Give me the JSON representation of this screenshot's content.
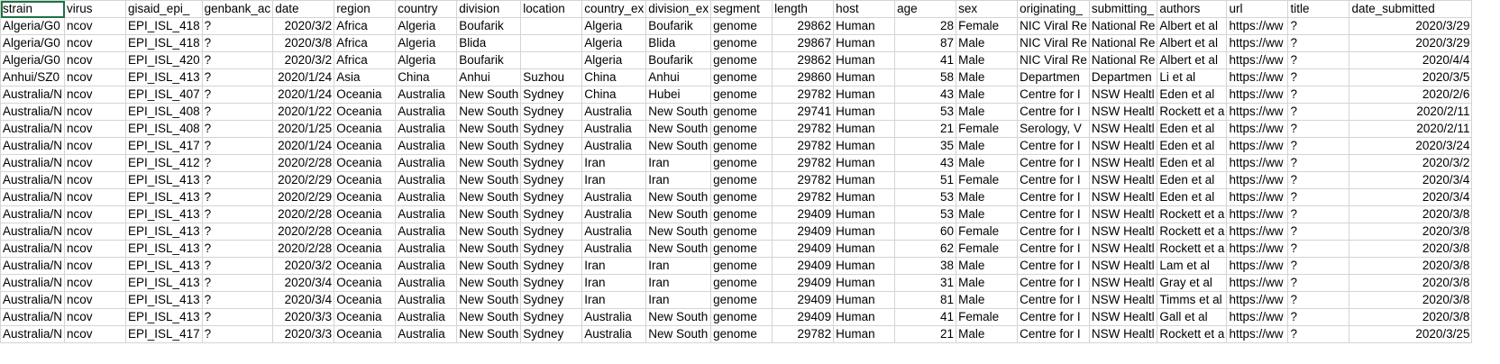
{
  "columns": [
    "strain",
    "virus",
    "gisaid_epi_",
    "genbank_ac",
    "date",
    "region",
    "country",
    "division",
    "location",
    "country_ex",
    "division_ex",
    "segment",
    "length",
    "host",
    "age",
    "sex",
    "originating_",
    "submitting_",
    "authors",
    "url",
    "title",
    "date_submitted"
  ],
  "numeric_columns": [
    4,
    12,
    14,
    21
  ],
  "selected_cell": "A1",
  "accent_color": "#1e7145",
  "gridline_color": "#d4d4d4",
  "rows": [
    [
      "Algeria/G0",
      "ncov",
      "EPI_ISL_418",
      "?",
      "2020/3/2",
      "Africa",
      "Algeria",
      "Boufarik",
      "",
      "Algeria",
      "Boufarik",
      "genome",
      "29862",
      "Human",
      "28",
      "Female",
      "NIC Viral Re",
      "National Re",
      "Albert et al",
      "https://ww",
      "?",
      "2020/3/29"
    ],
    [
      "Algeria/G0",
      "ncov",
      "EPI_ISL_418",
      "?",
      "2020/3/8",
      "Africa",
      "Algeria",
      "Blida",
      "",
      "Algeria",
      "Blida",
      "genome",
      "29867",
      "Human",
      "87",
      "Male",
      "NIC Viral Re",
      "National Re",
      "Albert et al",
      "https://ww",
      "?",
      "2020/3/29"
    ],
    [
      "Algeria/G0",
      "ncov",
      "EPI_ISL_420",
      "?",
      "2020/3/2",
      "Africa",
      "Algeria",
      "Boufarik",
      "",
      "Algeria",
      "Boufarik",
      "genome",
      "29862",
      "Human",
      "41",
      "Male",
      "NIC Viral Re",
      "National Re",
      "Albert et al",
      "https://ww",
      "?",
      "2020/4/4"
    ],
    [
      "Anhui/SZ0",
      "ncov",
      "EPI_ISL_413",
      "?",
      "2020/1/24",
      "Asia",
      "China",
      "Anhui",
      "Suzhou",
      "China",
      "Anhui",
      "genome",
      "29860",
      "Human",
      "58",
      "Male",
      "Departmen",
      "Departmen",
      "Li et al",
      "https://ww",
      "?",
      "2020/3/5"
    ],
    [
      "Australia/N",
      "ncov",
      "EPI_ISL_407",
      "?",
      "2020/1/24",
      "Oceania",
      "Australia",
      "New South",
      "Sydney",
      "China",
      "Hubei",
      "genome",
      "29782",
      "Human",
      "43",
      "Male",
      "Centre for I",
      "NSW Healtl",
      "Eden et al",
      "https://ww",
      "?",
      "2020/2/6"
    ],
    [
      "Australia/N",
      "ncov",
      "EPI_ISL_408",
      "?",
      "2020/1/22",
      "Oceania",
      "Australia",
      "New South",
      "Sydney",
      "Australia",
      "New South",
      "genome",
      "29741",
      "Human",
      "53",
      "Male",
      "Centre for I",
      "NSW Healtl",
      "Rockett et a",
      "https://ww",
      "?",
      "2020/2/11"
    ],
    [
      "Australia/N",
      "ncov",
      "EPI_ISL_408",
      "?",
      "2020/1/25",
      "Oceania",
      "Australia",
      "New South",
      "Sydney",
      "Australia",
      "New South",
      "genome",
      "29782",
      "Human",
      "21",
      "Female",
      "Serology, V",
      "NSW Healtl",
      "Eden et al",
      "https://ww",
      "?",
      "2020/2/11"
    ],
    [
      "Australia/N",
      "ncov",
      "EPI_ISL_417",
      "?",
      "2020/1/24",
      "Oceania",
      "Australia",
      "New South",
      "Sydney",
      "Australia",
      "New South",
      "genome",
      "29782",
      "Human",
      "35",
      "Male",
      "Centre for I",
      "NSW Healtl",
      "Eden et al",
      "https://ww",
      "?",
      "2020/3/24"
    ],
    [
      "Australia/N",
      "ncov",
      "EPI_ISL_412",
      "?",
      "2020/2/28",
      "Oceania",
      "Australia",
      "New South",
      "Sydney",
      "Iran",
      "Iran",
      "genome",
      "29782",
      "Human",
      "43",
      "Male",
      "Centre for I",
      "NSW Healtl",
      "Eden et al",
      "https://ww",
      "?",
      "2020/3/2"
    ],
    [
      "Australia/N",
      "ncov",
      "EPI_ISL_413",
      "?",
      "2020/2/29",
      "Oceania",
      "Australia",
      "New South",
      "Sydney",
      "Iran",
      "Iran",
      "genome",
      "29782",
      "Human",
      "51",
      "Female",
      "Centre for I",
      "NSW Healtl",
      "Eden et al",
      "https://ww",
      "?",
      "2020/3/4"
    ],
    [
      "Australia/N",
      "ncov",
      "EPI_ISL_413",
      "?",
      "2020/2/29",
      "Oceania",
      "Australia",
      "New South",
      "Sydney",
      "Australia",
      "New South",
      "genome",
      "29782",
      "Human",
      "53",
      "Male",
      "Centre for I",
      "NSW Healtl",
      "Eden et al",
      "https://ww",
      "?",
      "2020/3/4"
    ],
    [
      "Australia/N",
      "ncov",
      "EPI_ISL_413",
      "?",
      "2020/2/28",
      "Oceania",
      "Australia",
      "New South",
      "Sydney",
      "Australia",
      "New South",
      "genome",
      "29409",
      "Human",
      "53",
      "Male",
      "Centre for I",
      "NSW Healtl",
      "Rockett et a",
      "https://ww",
      "?",
      "2020/3/8"
    ],
    [
      "Australia/N",
      "ncov",
      "EPI_ISL_413",
      "?",
      "2020/2/28",
      "Oceania",
      "Australia",
      "New South",
      "Sydney",
      "Australia",
      "New South",
      "genome",
      "29409",
      "Human",
      "60",
      "Female",
      "Centre for I",
      "NSW Healtl",
      "Rockett et a",
      "https://ww",
      "?",
      "2020/3/8"
    ],
    [
      "Australia/N",
      "ncov",
      "EPI_ISL_413",
      "?",
      "2020/2/28",
      "Oceania",
      "Australia",
      "New South",
      "Sydney",
      "Australia",
      "New South",
      "genome",
      "29409",
      "Human",
      "62",
      "Female",
      "Centre for I",
      "NSW Healtl",
      "Rockett et a",
      "https://ww",
      "?",
      "2020/3/8"
    ],
    [
      "Australia/N",
      "ncov",
      "EPI_ISL_413",
      "?",
      "2020/3/2",
      "Oceania",
      "Australia",
      "New South",
      "Sydney",
      "Iran",
      "Iran",
      "genome",
      "29409",
      "Human",
      "38",
      "Male",
      "Centre for I",
      "NSW Healtl",
      "Lam et al",
      "https://ww",
      "?",
      "2020/3/8"
    ],
    [
      "Australia/N",
      "ncov",
      "EPI_ISL_413",
      "?",
      "2020/3/4",
      "Oceania",
      "Australia",
      "New South",
      "Sydney",
      "Iran",
      "Iran",
      "genome",
      "29409",
      "Human",
      "31",
      "Male",
      "Centre for I",
      "NSW Healtl",
      "Gray et al",
      "https://ww",
      "?",
      "2020/3/8"
    ],
    [
      "Australia/N",
      "ncov",
      "EPI_ISL_413",
      "?",
      "2020/3/4",
      "Oceania",
      "Australia",
      "New South",
      "Sydney",
      "Iran",
      "Iran",
      "genome",
      "29409",
      "Human",
      "81",
      "Male",
      "Centre for I",
      "NSW Healtl",
      "Timms et al",
      "https://ww",
      "?",
      "2020/3/8"
    ],
    [
      "Australia/N",
      "ncov",
      "EPI_ISL_413",
      "?",
      "2020/3/3",
      "Oceania",
      "Australia",
      "New South",
      "Sydney",
      "Australia",
      "New South",
      "genome",
      "29409",
      "Human",
      "41",
      "Female",
      "Centre for I",
      "NSW Healtl",
      "Gall et al",
      "https://ww",
      "?",
      "2020/3/8"
    ],
    [
      "Australia/N",
      "ncov",
      "EPI_ISL_417",
      "?",
      "2020/3/3",
      "Oceania",
      "Australia",
      "New South",
      "Sydney",
      "Australia",
      "New South",
      "genome",
      "29782",
      "Human",
      "21",
      "Male",
      "Centre for I",
      "NSW Healtl",
      "Rockett et a",
      "https://ww",
      "?",
      "2020/3/25"
    ]
  ]
}
